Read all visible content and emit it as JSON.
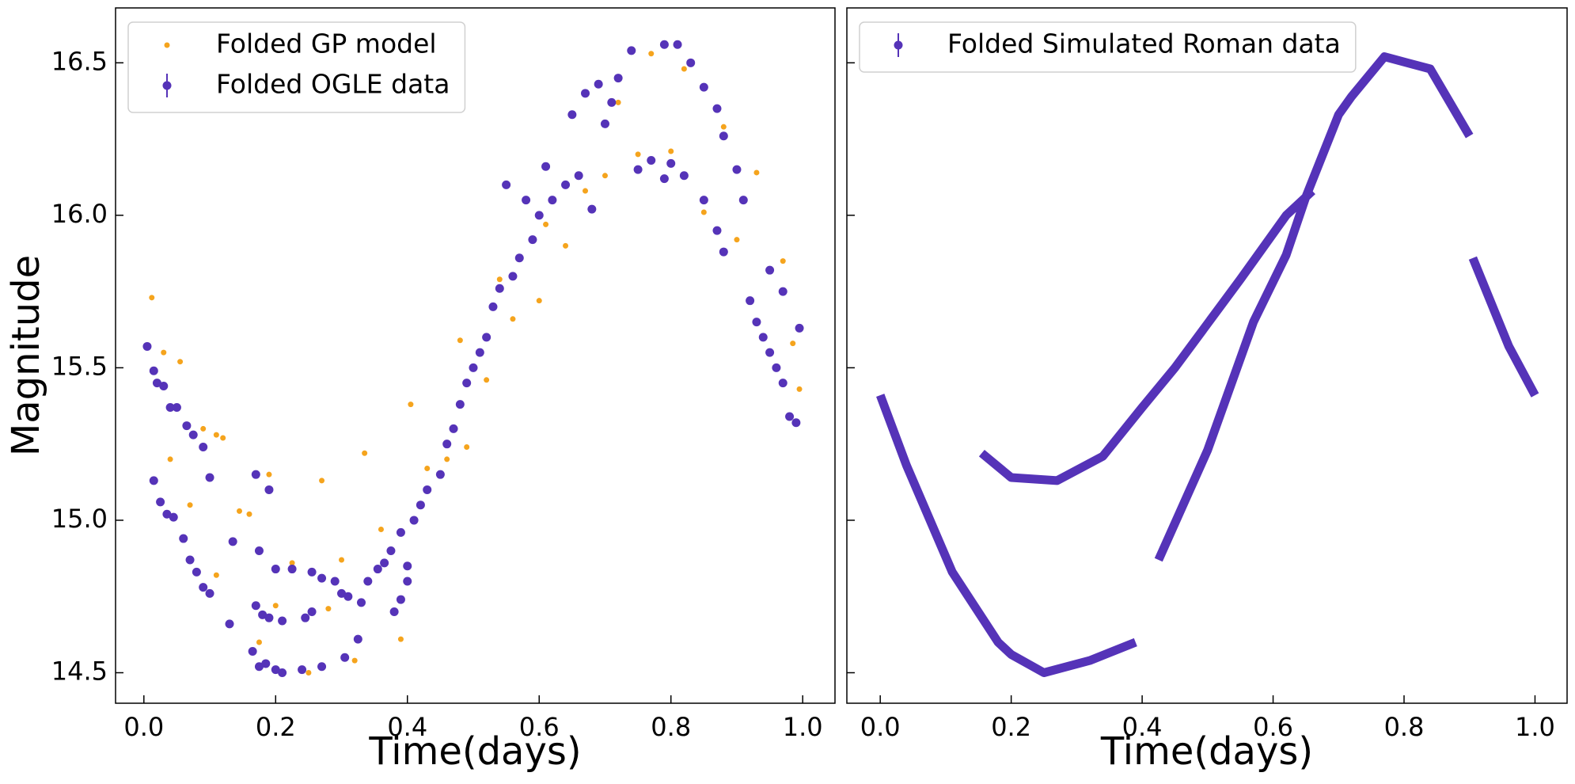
{
  "chart_data": [
    {
      "type": "scatter",
      "xlabel": "Time(days)",
      "ylabel": "Magnitude",
      "xlim": [
        -0.043,
        1.049
      ],
      "ylim": [
        14.4,
        16.68
      ],
      "xticks": [
        {
          "value": 0,
          "label": "0.0"
        },
        0.2,
        0.4,
        0.6,
        0.8,
        {
          "value": 1,
          "label": "1.0"
        }
      ],
      "yticks": [
        14.5,
        {
          "value": 15,
          "label": "15.0"
        },
        15.5,
        {
          "value": 16,
          "label": "16.0"
        },
        16.5
      ],
      "ytick_labels": true,
      "legend": "upper left",
      "series": [
        {
          "name": "Folded GP model",
          "color": "#f5a41d",
          "marker": "dot",
          "x": [
            0.012,
            0.03,
            0.055,
            0.04,
            0.07,
            0.09,
            0.11,
            0.12,
            0.11,
            0.145,
            0.16,
            0.175,
            0.19,
            0.2,
            0.225,
            0.25,
            0.27,
            0.28,
            0.3,
            0.32,
            0.335,
            0.36,
            0.39,
            0.405,
            0.43,
            0.46,
            0.48,
            0.49,
            0.52,
            0.54,
            0.56,
            0.6,
            0.61,
            0.64,
            0.67,
            0.7,
            0.72,
            0.75,
            0.77,
            0.8,
            0.82,
            0.85,
            0.88,
            0.9,
            0.93,
            0.97,
            0.985,
            0.995
          ],
          "values": [
            15.73,
            15.55,
            15.52,
            15.2,
            15.05,
            15.3,
            15.28,
            15.27,
            14.82,
            15.03,
            15.02,
            14.6,
            15.15,
            14.72,
            14.86,
            14.5,
            15.13,
            14.71,
            14.87,
            14.54,
            15.22,
            14.97,
            14.61,
            15.38,
            15.17,
            15.2,
            15.59,
            15.24,
            15.46,
            15.79,
            15.66,
            15.72,
            15.97,
            15.9,
            16.08,
            16.13,
            16.37,
            16.2,
            16.53,
            16.21,
            16.48,
            16.01,
            16.29,
            15.92,
            16.14,
            15.85,
            15.58,
            15.43
          ]
        },
        {
          "name": "Folded OGLE data",
          "color": "#5533b8",
          "marker": "errorbar",
          "x": [
            0.005,
            0.015,
            0.02,
            0.03,
            0.04,
            0.05,
            0.065,
            0.075,
            0.09,
            0.1,
            0.015,
            0.025,
            0.035,
            0.045,
            0.06,
            0.07,
            0.08,
            0.09,
            0.1,
            0.13,
            0.135,
            0.165,
            0.175,
            0.185,
            0.2,
            0.21,
            0.17,
            0.18,
            0.19,
            0.21,
            0.17,
            0.19,
            0.175,
            0.2,
            0.225,
            0.245,
            0.255,
            0.24,
            0.27,
            0.255,
            0.27,
            0.29,
            0.3,
            0.31,
            0.305,
            0.325,
            0.33,
            0.34,
            0.355,
            0.365,
            0.375,
            0.38,
            0.39,
            0.4,
            0.39,
            0.41,
            0.42,
            0.43,
            0.4,
            0.45,
            0.46,
            0.47,
            0.48,
            0.49,
            0.5,
            0.51,
            0.52,
            0.53,
            0.54,
            0.56,
            0.57,
            0.59,
            0.6,
            0.62,
            0.64,
            0.66,
            0.68,
            0.55,
            0.58,
            0.61,
            0.65,
            0.67,
            0.69,
            0.7,
            0.71,
            0.72,
            0.74,
            0.75,
            0.77,
            0.79,
            0.8,
            0.82,
            0.85,
            0.87,
            0.88,
            0.79,
            0.81,
            0.83,
            0.85,
            0.87,
            0.88,
            0.9,
            0.91,
            0.92,
            0.93,
            0.94,
            0.95,
            0.96,
            0.97,
            0.98,
            0.99,
            0.95,
            0.97,
            0.995
          ],
          "values": [
            15.57,
            15.49,
            15.45,
            15.44,
            15.37,
            15.37,
            15.31,
            15.28,
            15.24,
            15.14,
            15.13,
            15.06,
            15.02,
            15.01,
            14.94,
            14.87,
            14.83,
            14.78,
            14.76,
            14.66,
            14.93,
            14.57,
            14.52,
            14.53,
            14.51,
            14.5,
            14.72,
            14.69,
            14.68,
            14.67,
            15.15,
            15.1,
            14.9,
            14.84,
            14.84,
            14.68,
            14.7,
            14.51,
            14.52,
            14.83,
            14.81,
            14.8,
            14.76,
            14.75,
            14.55,
            14.61,
            14.73,
            14.8,
            14.84,
            14.86,
            14.9,
            14.7,
            14.74,
            14.8,
            14.96,
            15.0,
            15.05,
            15.1,
            14.85,
            15.15,
            15.25,
            15.3,
            15.38,
            15.45,
            15.5,
            15.55,
            15.6,
            15.7,
            15.76,
            15.8,
            15.86,
            15.92,
            16.0,
            16.05,
            16.1,
            16.13,
            16.02,
            16.1,
            16.05,
            16.16,
            16.33,
            16.4,
            16.43,
            16.3,
            16.37,
            16.45,
            16.54,
            16.15,
            16.18,
            16.12,
            16.17,
            16.13,
            16.05,
            15.95,
            15.88,
            16.56,
            16.56,
            16.5,
            16.42,
            16.35,
            16.26,
            16.15,
            16.05,
            15.72,
            15.65,
            15.6,
            15.55,
            15.5,
            15.45,
            15.34,
            15.32,
            15.82,
            15.75,
            15.63
          ]
        }
      ]
    },
    {
      "type": "line",
      "xlabel": "Time(days)",
      "xlim": [
        -0.051,
        1.049
      ],
      "ylim": [
        14.4,
        16.68
      ],
      "xticks": [
        {
          "value": 0,
          "label": "0.0"
        },
        0.2,
        0.4,
        0.6,
        0.8,
        {
          "value": 1,
          "label": "1.0"
        }
      ],
      "yticks": [
        14.5,
        15,
        15.5,
        16,
        16.5
      ],
      "ytick_labels": false,
      "legend": "upper left",
      "series": [
        {
          "name": "Folded Simulated Roman data",
          "color": "#5533b8",
          "marker": "errorbar",
          "x": [
            0,
            0.04,
            0.11,
            0.18,
            0.2,
            0.25,
            0.32,
            0.39,
            null,
            0.155,
            0.2,
            0.27,
            0.34,
            0.4,
            0.45,
            0.55,
            0.62,
            0.66,
            null,
            0.425,
            0.5,
            0.57,
            0.62,
            0.65,
            0.7,
            0.72,
            0.77,
            0.84,
            0.9,
            null,
            0.905,
            0.96,
            1.0
          ],
          "values": [
            15.41,
            15.18,
            14.83,
            14.6,
            14.56,
            14.5,
            14.54,
            14.6,
            null,
            15.22,
            15.14,
            15.13,
            15.21,
            15.37,
            15.5,
            15.79,
            16.0,
            16.08,
            null,
            14.87,
            15.23,
            15.65,
            15.87,
            16.06,
            16.33,
            16.39,
            16.52,
            16.48,
            16.26,
            null,
            15.86,
            15.57,
            15.41
          ]
        }
      ]
    }
  ]
}
